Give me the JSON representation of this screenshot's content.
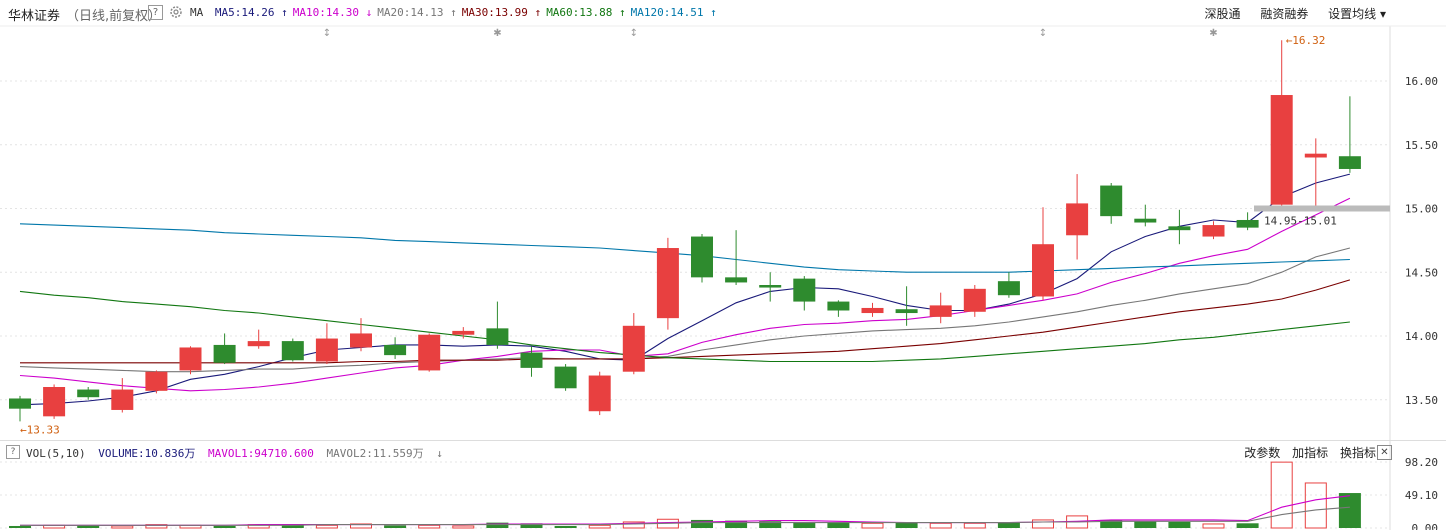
{
  "header": {
    "stock_name": "华林证券",
    "mode": "（日线,前复权）",
    "help_icon": "?",
    "ma_label": "MA",
    "ma": [
      {
        "text": "MA5:14.26",
        "arrow": "↑",
        "color": "#1a1a7a"
      },
      {
        "text": "MA10:14.30",
        "arrow": "↓",
        "color": "#cc00cc"
      },
      {
        "text": "MA20:14.13",
        "arrow": "↑",
        "color": "#777777"
      },
      {
        "text": "MA30:13.99",
        "arrow": "↑",
        "color": "#7a0000"
      },
      {
        "text": "MA60:13.88",
        "arrow": "↑",
        "color": "#117711"
      },
      {
        "text": "MA120:14.51",
        "arrow": "↑",
        "color": "#0077aa"
      }
    ],
    "links": [
      "深股通",
      "融资融券",
      "设置均线 ▾"
    ]
  },
  "volume_panel": {
    "label": "VOL(5,10)",
    "volume": "VOLUME:10.836万",
    "mavol1": "MAVOL1:94710.600",
    "mavol2": "MAVOL2:11.559万",
    "mavol2_arrow": "↓",
    "actions": [
      "改参数",
      "加指标",
      "换指标"
    ],
    "close": "✕"
  },
  "chart_data": [
    {
      "type": "candlestick",
      "price_ticks": [
        "16.00",
        "15.50",
        "15.00",
        "14.50",
        "14.00",
        "13.50"
      ],
      "ylim": [
        13.2,
        16.4
      ],
      "max_label": "16.32",
      "min_label": "13.33",
      "price_range_label": "14.95-15.01",
      "candles": [
        {
          "o": 13.51,
          "c": 13.43,
          "h": 13.53,
          "l": 13.33
        },
        {
          "o": 13.37,
          "c": 13.6,
          "h": 13.62,
          "l": 13.35
        },
        {
          "o": 13.58,
          "c": 13.52,
          "h": 13.6,
          "l": 13.5
        },
        {
          "o": 13.42,
          "c": 13.58,
          "h": 13.67,
          "l": 13.4
        },
        {
          "o": 13.57,
          "c": 13.72,
          "h": 13.73,
          "l": 13.55
        },
        {
          "o": 13.73,
          "c": 13.91,
          "h": 13.92,
          "l": 13.7
        },
        {
          "o": 13.93,
          "c": 13.79,
          "h": 14.02,
          "l": 13.78
        },
        {
          "o": 13.92,
          "c": 13.96,
          "h": 14.05,
          "l": 13.9
        },
        {
          "o": 13.96,
          "c": 13.81,
          "h": 13.98,
          "l": 13.8
        },
        {
          "o": 13.8,
          "c": 13.98,
          "h": 14.1,
          "l": 13.78
        },
        {
          "o": 13.91,
          "c": 14.02,
          "h": 14.14,
          "l": 13.88
        },
        {
          "o": 13.93,
          "c": 13.85,
          "h": 13.99,
          "l": 13.82
        },
        {
          "o": 13.73,
          "c": 14.01,
          "h": 14.02,
          "l": 13.72
        },
        {
          "o": 14.01,
          "c": 14.04,
          "h": 14.07,
          "l": 13.98
        },
        {
          "o": 14.06,
          "c": 13.93,
          "h": 14.27,
          "l": 13.9
        },
        {
          "o": 13.87,
          "c": 13.75,
          "h": 13.92,
          "l": 13.68
        },
        {
          "o": 13.76,
          "c": 13.59,
          "h": 13.78,
          "l": 13.57
        },
        {
          "o": 13.41,
          "c": 13.69,
          "h": 13.72,
          "l": 13.38
        },
        {
          "o": 13.72,
          "c": 14.08,
          "h": 14.18,
          "l": 13.7
        },
        {
          "o": 14.14,
          "c": 14.69,
          "h": 14.77,
          "l": 14.05
        },
        {
          "o": 14.78,
          "c": 14.46,
          "h": 14.8,
          "l": 14.42
        },
        {
          "o": 14.46,
          "c": 14.42,
          "h": 14.83,
          "l": 14.4
        },
        {
          "o": 14.4,
          "c": 14.38,
          "h": 14.5,
          "l": 14.27
        },
        {
          "o": 14.45,
          "c": 14.27,
          "h": 14.47,
          "l": 14.2
        },
        {
          "o": 14.27,
          "c": 14.2,
          "h": 14.28,
          "l": 14.15
        },
        {
          "o": 14.18,
          "c": 14.22,
          "h": 14.26,
          "l": 14.15
        },
        {
          "o": 14.21,
          "c": 14.18,
          "h": 14.39,
          "l": 14.08
        },
        {
          "o": 14.15,
          "c": 14.24,
          "h": 14.34,
          "l": 14.1
        },
        {
          "o": 14.19,
          "c": 14.37,
          "h": 14.4,
          "l": 14.15
        },
        {
          "o": 14.43,
          "c": 14.32,
          "h": 14.5,
          "l": 14.3
        },
        {
          "o": 14.31,
          "c": 14.72,
          "h": 15.01,
          "l": 14.28
        },
        {
          "o": 14.79,
          "c": 15.04,
          "h": 15.27,
          "l": 14.6
        },
        {
          "o": 15.18,
          "c": 14.94,
          "h": 15.2,
          "l": 14.88
        },
        {
          "o": 14.92,
          "c": 14.89,
          "h": 15.03,
          "l": 14.86
        },
        {
          "o": 14.86,
          "c": 14.83,
          "h": 14.99,
          "l": 14.72
        },
        {
          "o": 14.78,
          "c": 14.87,
          "h": 14.9,
          "l": 14.76
        },
        {
          "o": 14.91,
          "c": 14.85,
          "h": 14.97,
          "l": 14.83
        },
        {
          "o": 15.03,
          "c": 15.89,
          "h": 16.32,
          "l": 15.0
        },
        {
          "o": 15.4,
          "c": 15.43,
          "h": 15.55,
          "l": 15.02
        },
        {
          "o": 15.41,
          "c": 15.31,
          "h": 15.88,
          "l": 15.28
        }
      ],
      "ma_series": [
        {
          "name": "MA5",
          "color": "#1a1a7a",
          "start": 0,
          "values": [
            13.46,
            13.47,
            13.49,
            13.52,
            13.57,
            13.66,
            13.7,
            13.76,
            13.83,
            13.89,
            13.91,
            13.93,
            13.93,
            13.92,
            13.93,
            13.92,
            13.88,
            13.82,
            13.81,
            13.98,
            14.12,
            14.26,
            14.35,
            14.38,
            14.37,
            14.31,
            14.24,
            14.2,
            14.2,
            14.25,
            14.33,
            14.45,
            14.66,
            14.78,
            14.86,
            14.91,
            14.89,
            15.09,
            15.2,
            15.27
          ]
        },
        {
          "name": "MA10",
          "color": "#cc00cc",
          "start": 0,
          "values": [
            13.69,
            13.67,
            13.64,
            13.61,
            13.59,
            13.57,
            13.58,
            13.6,
            13.63,
            13.67,
            13.71,
            13.75,
            13.77,
            13.81,
            13.84,
            13.88,
            13.89,
            13.89,
            13.84,
            13.86,
            13.95,
            14.01,
            14.06,
            14.09,
            14.1,
            14.12,
            14.13,
            14.16,
            14.2,
            14.24,
            14.28,
            14.33,
            14.42,
            14.49,
            14.57,
            14.63,
            14.68,
            14.82,
            14.95,
            15.08
          ]
        },
        {
          "name": "MA20",
          "color": "#777777",
          "start": 0,
          "values": [
            13.76,
            13.75,
            13.74,
            13.73,
            13.72,
            13.72,
            13.73,
            13.74,
            13.74,
            13.76,
            13.77,
            13.79,
            13.8,
            13.81,
            13.82,
            13.83,
            13.82,
            13.82,
            13.82,
            13.84,
            13.89,
            13.93,
            13.97,
            14.0,
            14.02,
            14.04,
            14.05,
            14.06,
            14.08,
            14.11,
            14.15,
            14.19,
            14.24,
            14.28,
            14.33,
            14.37,
            14.41,
            14.5,
            14.62,
            14.69
          ]
        },
        {
          "name": "MA30",
          "color": "#7a0000",
          "start": 0,
          "values": [
            13.79,
            13.79,
            13.79,
            13.79,
            13.79,
            13.79,
            13.79,
            13.79,
            13.79,
            13.79,
            13.8,
            13.8,
            13.81,
            13.81,
            13.81,
            13.82,
            13.82,
            13.82,
            13.82,
            13.83,
            13.84,
            13.85,
            13.86,
            13.87,
            13.88,
            13.9,
            13.92,
            13.94,
            13.97,
            14.0,
            14.03,
            14.07,
            14.11,
            14.15,
            14.19,
            14.22,
            14.25,
            14.29,
            14.36,
            14.44
          ]
        },
        {
          "name": "MA60",
          "color": "#117711",
          "start": 0,
          "values": [
            14.35,
            14.32,
            14.3,
            14.27,
            14.25,
            14.23,
            14.2,
            14.18,
            14.15,
            14.12,
            14.09,
            14.06,
            14.03,
            14.0,
            13.97,
            13.93,
            13.9,
            13.87,
            13.85,
            13.83,
            13.82,
            13.81,
            13.8,
            13.8,
            13.8,
            13.8,
            13.81,
            13.82,
            13.84,
            13.86,
            13.88,
            13.9,
            13.92,
            13.94,
            13.97,
            13.99,
            14.02,
            14.05,
            14.08,
            14.11
          ]
        },
        {
          "name": "MA120",
          "color": "#0077aa",
          "start": 0,
          "values": [
            14.88,
            14.87,
            14.86,
            14.85,
            14.84,
            14.83,
            14.81,
            14.8,
            14.79,
            14.78,
            14.77,
            14.75,
            14.74,
            14.73,
            14.72,
            14.71,
            14.7,
            14.69,
            14.67,
            14.65,
            14.63,
            14.6,
            14.57,
            14.54,
            14.52,
            14.51,
            14.5,
            14.5,
            14.5,
            14.5,
            14.51,
            14.52,
            14.53,
            14.54,
            14.55,
            14.56,
            14.57,
            14.58,
            14.59,
            14.6
          ]
        }
      ]
    },
    {
      "type": "bar",
      "name": "VOL(5,10)",
      "ticks": [
        "98.20",
        "49.10",
        "0.00"
      ],
      "ylim": [
        0,
        98.2
      ],
      "values": [
        3,
        4,
        4,
        3,
        5,
        4,
        3,
        5,
        4,
        4,
        6,
        4,
        4,
        3,
        8,
        7,
        3,
        4,
        9,
        13,
        12,
        11,
        10,
        9,
        8,
        7,
        8,
        7,
        7,
        8,
        12,
        18,
        12,
        10,
        9,
        6,
        7,
        98,
        67,
        52
      ],
      "mavol1": [
        4,
        4,
        4,
        4,
        4,
        4,
        4,
        5,
        5,
        5,
        5,
        5,
        5,
        5,
        6,
        6,
        6,
        6,
        7,
        8,
        9,
        10,
        11,
        11,
        10,
        9,
        8,
        8,
        8,
        8,
        9,
        10,
        12,
        12,
        12,
        12,
        11,
        31,
        42,
        48
      ],
      "mavol2": [
        4,
        4,
        4,
        4,
        4,
        4,
        4,
        4,
        4,
        5,
        5,
        5,
        5,
        5,
        5,
        5,
        5,
        5,
        6,
        7,
        8,
        8,
        8,
        8,
        8,
        8,
        8,
        8,
        8,
        8,
        9,
        9,
        10,
        10,
        10,
        10,
        10,
        20,
        27,
        31
      ]
    }
  ]
}
